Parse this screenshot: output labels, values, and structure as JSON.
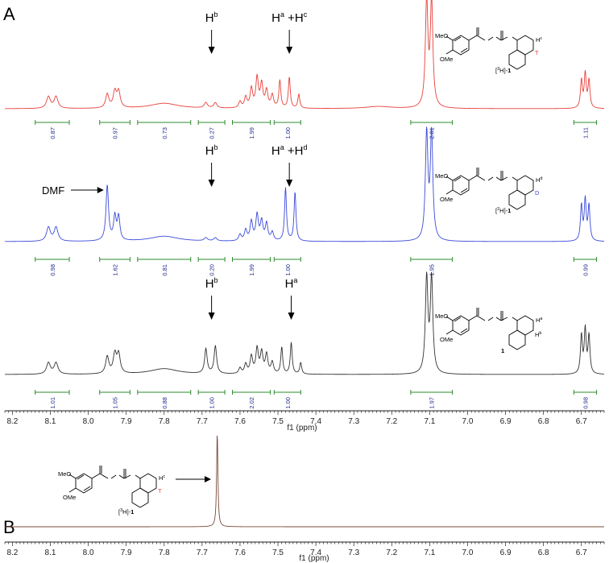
{
  "chart_data": [
    {
      "panel": "A",
      "type": "line",
      "xlabel": "f1 (ppm)",
      "xlim": [
        8.22,
        6.64
      ],
      "x_reversed": true,
      "xticks": [
        "8.2",
        "8.1",
        "8.0",
        "7.9",
        "7.8",
        "7.7",
        "7.6",
        "7.5",
        "7.4",
        "7.3",
        "7.2",
        "7.1",
        "7.0",
        "6.9",
        "6.8",
        "6.7"
      ],
      "grid": false,
      "series": [
        {
          "color": "#e8403a",
          "baseline": 0,
          "peaks": [
            {
              "x": 8.105,
              "h": 0.11,
              "w": 0.006
            },
            {
              "x": 8.085,
              "h": 0.11,
              "w": 0.006
            },
            {
              "x": 7.95,
              "h": 0.13,
              "w": 0.005
            },
            {
              "x": 7.93,
              "h": 0.15,
              "w": 0.005
            },
            {
              "x": 7.92,
              "h": 0.15,
              "w": 0.005
            },
            {
              "x": 7.8,
              "h": 0.05,
              "w": 0.045
            },
            {
              "x": 7.69,
              "h": 0.05,
              "w": 0.005
            },
            {
              "x": 7.665,
              "h": 0.05,
              "w": 0.005
            },
            {
              "x": 7.6,
              "h": 0.06,
              "w": 0.004
            },
            {
              "x": 7.585,
              "h": 0.1,
              "w": 0.004
            },
            {
              "x": 7.57,
              "h": 0.18,
              "w": 0.004
            },
            {
              "x": 7.555,
              "h": 0.28,
              "w": 0.004
            },
            {
              "x": 7.543,
              "h": 0.22,
              "w": 0.004
            },
            {
              "x": 7.53,
              "h": 0.16,
              "w": 0.004
            },
            {
              "x": 7.515,
              "h": 0.12,
              "w": 0.004
            },
            {
              "x": 7.495,
              "h": 0.26,
              "w": 0.003
            },
            {
              "x": 7.47,
              "h": 0.29,
              "w": 0.003
            },
            {
              "x": 7.445,
              "h": 0.13,
              "w": 0.003
            },
            {
              "x": 7.235,
              "h": 0.02,
              "w": 0.04
            },
            {
              "x": 7.108,
              "h": 1.0,
              "w": 0.004
            },
            {
              "x": 7.095,
              "h": 1.0,
              "w": 0.004
            },
            {
              "x": 6.7,
              "h": 0.26,
              "w": 0.003
            },
            {
              "x": 6.69,
              "h": 0.32,
              "w": 0.003
            },
            {
              "x": 6.68,
              "h": 0.26,
              "w": 0.003
            }
          ]
        },
        {
          "color": "#3b4bd8",
          "baseline": 0,
          "peaks": [
            {
              "x": 8.105,
              "h": 0.13,
              "w": 0.006
            },
            {
              "x": 8.085,
              "h": 0.13,
              "w": 0.006
            },
            {
              "x": 7.95,
              "h": 0.52,
              "w": 0.004
            },
            {
              "x": 7.93,
              "h": 0.22,
              "w": 0.004
            },
            {
              "x": 7.92,
              "h": 0.22,
              "w": 0.004
            },
            {
              "x": 7.8,
              "h": 0.05,
              "w": 0.045
            },
            {
              "x": 7.69,
              "h": 0.03,
              "w": 0.005
            },
            {
              "x": 7.665,
              "h": 0.03,
              "w": 0.005
            },
            {
              "x": 7.6,
              "h": 0.06,
              "w": 0.004
            },
            {
              "x": 7.585,
              "h": 0.1,
              "w": 0.004
            },
            {
              "x": 7.57,
              "h": 0.18,
              "w": 0.004
            },
            {
              "x": 7.555,
              "h": 0.24,
              "w": 0.004
            },
            {
              "x": 7.543,
              "h": 0.18,
              "w": 0.004
            },
            {
              "x": 7.53,
              "h": 0.16,
              "w": 0.004
            },
            {
              "x": 7.515,
              "h": 0.08,
              "w": 0.004
            },
            {
              "x": 7.48,
              "h": 0.5,
              "w": 0.003
            },
            {
              "x": 7.455,
              "h": 0.46,
              "w": 0.003
            },
            {
              "x": 7.108,
              "h": 1.0,
              "w": 0.004
            },
            {
              "x": 7.095,
              "h": 1.0,
              "w": 0.004
            },
            {
              "x": 6.7,
              "h": 0.33,
              "w": 0.003
            },
            {
              "x": 6.69,
              "h": 0.38,
              "w": 0.003
            },
            {
              "x": 6.68,
              "h": 0.33,
              "w": 0.003
            }
          ]
        },
        {
          "color": "#333333",
          "baseline": 0,
          "peaks": [
            {
              "x": 8.105,
              "h": 0.12,
              "w": 0.006
            },
            {
              "x": 8.085,
              "h": 0.12,
              "w": 0.006
            },
            {
              "x": 7.95,
              "h": 0.18,
              "w": 0.005
            },
            {
              "x": 7.93,
              "h": 0.2,
              "w": 0.005
            },
            {
              "x": 7.92,
              "h": 0.2,
              "w": 0.005
            },
            {
              "x": 7.8,
              "h": 0.06,
              "w": 0.045
            },
            {
              "x": 7.69,
              "h": 0.26,
              "w": 0.004
            },
            {
              "x": 7.665,
              "h": 0.29,
              "w": 0.004
            },
            {
              "x": 7.6,
              "h": 0.06,
              "w": 0.004
            },
            {
              "x": 7.585,
              "h": 0.1,
              "w": 0.004
            },
            {
              "x": 7.57,
              "h": 0.18,
              "w": 0.004
            },
            {
              "x": 7.555,
              "h": 0.26,
              "w": 0.004
            },
            {
              "x": 7.543,
              "h": 0.22,
              "w": 0.004
            },
            {
              "x": 7.53,
              "h": 0.2,
              "w": 0.004
            },
            {
              "x": 7.515,
              "h": 0.12,
              "w": 0.004
            },
            {
              "x": 7.49,
              "h": 0.28,
              "w": 0.003
            },
            {
              "x": 7.465,
              "h": 0.33,
              "w": 0.003
            },
            {
              "x": 7.44,
              "h": 0.12,
              "w": 0.003
            },
            {
              "x": 7.108,
              "h": 1.0,
              "w": 0.004
            },
            {
              "x": 7.095,
              "h": 1.0,
              "w": 0.004
            },
            {
              "x": 6.7,
              "h": 0.4,
              "w": 0.003
            },
            {
              "x": 6.69,
              "h": 0.46,
              "w": 0.003
            },
            {
              "x": 6.68,
              "h": 0.4,
              "w": 0.003
            }
          ]
        }
      ],
      "integrals": [
        [
          {
            "from": 8.14,
            "to": 8.05,
            "value": "0.87"
          },
          {
            "from": 7.97,
            "to": 7.89,
            "value": "0.97"
          },
          {
            "from": 7.87,
            "to": 7.73,
            "value": "0.73"
          },
          {
            "from": 7.71,
            "to": 7.64,
            "value": "0.27"
          },
          {
            "from": 7.62,
            "to": 7.52,
            "value": "1.99"
          },
          {
            "from": 7.51,
            "to": 7.44,
            "value": "1.00"
          },
          {
            "from": 7.15,
            "to": 7.04,
            "value": "2.01"
          },
          {
            "from": 6.72,
            "to": 6.66,
            "value": "1.11"
          }
        ],
        [
          {
            "from": 8.14,
            "to": 8.05,
            "value": "0.98"
          },
          {
            "from": 7.97,
            "to": 7.89,
            "value": "1.62"
          },
          {
            "from": 7.87,
            "to": 7.73,
            "value": "0.81"
          },
          {
            "from": 7.71,
            "to": 7.64,
            "value": "0.20"
          },
          {
            "from": 7.62,
            "to": 7.52,
            "value": "1.99"
          },
          {
            "from": 7.51,
            "to": 7.44,
            "value": "1.00"
          },
          {
            "from": 7.15,
            "to": 7.04,
            "value": "1.95"
          },
          {
            "from": 6.72,
            "to": 6.66,
            "value": "0.99"
          }
        ],
        [
          {
            "from": 8.14,
            "to": 8.05,
            "value": "1.01"
          },
          {
            "from": 7.97,
            "to": 7.89,
            "value": "1.05"
          },
          {
            "from": 7.87,
            "to": 7.73,
            "value": "0.88"
          },
          {
            "from": 7.71,
            "to": 7.64,
            "value": "1.00"
          },
          {
            "from": 7.62,
            "to": 7.52,
            "value": "2.02"
          },
          {
            "from": 7.51,
            "to": 7.44,
            "value": "1.00"
          },
          {
            "from": 7.15,
            "to": 7.04,
            "value": "1.97"
          },
          {
            "from": 6.72,
            "to": 6.66,
            "value": "0.98"
          }
        ]
      ],
      "annotations": [
        [
          {
            "x": 7.675,
            "text": "H",
            "sup": "b"
          },
          {
            "x": 7.47,
            "text": "H",
            "sup": "a",
            "text2": " +H",
            "sup2": "c"
          }
        ],
        [
          {
            "x": 7.675,
            "text": "H",
            "sup": "b"
          },
          {
            "x": 7.47,
            "text": "H",
            "sup": "a",
            "text2": " +H",
            "sup2": "d"
          },
          {
            "x": 7.955,
            "text": "DMF",
            "side": "left"
          }
        ],
        [
          {
            "x": 7.675,
            "text": "H",
            "sup": "b"
          },
          {
            "x": 7.465,
            "text": "H",
            "sup": "a"
          }
        ]
      ]
    },
    {
      "panel": "B",
      "type": "line",
      "xlabel": "f1 (ppm)",
      "xlim": [
        8.22,
        6.64
      ],
      "x_reversed": true,
      "xticks": [
        "8.2",
        "8.1",
        "8.0",
        "7.9",
        "7.8",
        "7.7",
        "7.6",
        "7.5",
        "7.4",
        "7.3",
        "7.2",
        "7.1",
        "7.0",
        "6.9",
        "6.8",
        "6.7"
      ],
      "grid": false,
      "series": [
        {
          "color": "#7a4a3a",
          "baseline": 0,
          "peaks": [
            {
              "x": 7.66,
              "h": 1.0,
              "w": 0.002
            }
          ]
        }
      ]
    }
  ],
  "figure": {
    "panel_a_letter": "A",
    "panel_b_letter": "B"
  },
  "structures": {
    "s1": {
      "ome_top": "MeO",
      "ome_bot": "OMe",
      "nh": "N",
      "h": "H",
      "h_label": "H",
      "h_sup": "c",
      "iso": "T",
      "name_pre": "[",
      "name_mass": "3",
      "name_post": "H]-",
      "name_bold": "1"
    },
    "s2": {
      "ome_top": "MeO",
      "ome_bot": "OMe",
      "nh": "N",
      "h": "H",
      "h_label": "H",
      "h_sup": "d",
      "iso": "D",
      "name_pre": "[",
      "name_mass": "2",
      "name_post": "H]-",
      "name_bold": "1"
    },
    "s3": {
      "ome_top": "MeO",
      "ome_bot": "OMe",
      "nh": "N",
      "h": "H",
      "h_label": "H",
      "h_sup": "a",
      "h2_label": "H",
      "h2_sup": "b",
      "name_bold": "1"
    },
    "s4": {
      "ome_top": "MeO",
      "ome_bot": "OMe",
      "nh": "N",
      "h": "H",
      "h_label": "H",
      "h_sup": "c",
      "iso": "T",
      "name_pre": "[",
      "name_mass": "3",
      "name_post": "H]-",
      "name_bold": "1"
    }
  },
  "colors": {
    "integral_bracket": "#2e8b2e",
    "integral_text": "#1f2a8a",
    "isotope_red": "#e8403a",
    "isotope_blue": "#3b4bd8"
  }
}
